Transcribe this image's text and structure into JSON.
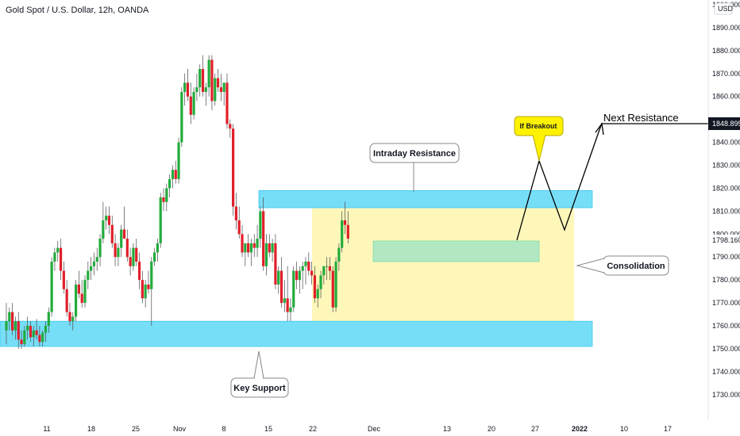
{
  "header": {
    "title": "Gold Spot / U.S. Dollar, 12h, OANDA",
    "currency": "USD"
  },
  "colors": {
    "up": "#089981",
    "down": "#f23645",
    "up_bright": "#22ab3c",
    "down_bright": "#e0202a",
    "zone": "#5fd8f7",
    "consolidation": "#fff6b3",
    "breakout_zone": "#a8e6c3",
    "callout_yellow": "#fff200"
  },
  "annotations": {
    "intraday_resistance": "Intraday Resistance",
    "key_support": "Key Support",
    "consolidation": "Consolidation",
    "if_breakout": "If Breakout",
    "next_resistance": "Next Resistance",
    "next_resistance_price": "1848.895",
    "current_price": "1798.160"
  },
  "chart_data": {
    "type": "candlestick",
    "title": "Gold Spot / U.S. Dollar, 12h, OANDA",
    "y_unit": "USD",
    "ylim": [
      1728,
      1900
    ],
    "y_ticks": [
      1730,
      1740,
      1750,
      1760,
      1770,
      1780,
      1790,
      1800,
      1810,
      1820,
      1830,
      1840,
      1850,
      1860,
      1870,
      1880,
      1890,
      1900
    ],
    "y_tick_labels": [
      "1730.000",
      "1740.000",
      "1750.000",
      "1760.000",
      "1770.000",
      "1780.000",
      "1790.000",
      "1800.000",
      "1810.000",
      "1820.000",
      "1830.000",
      "1840.000",
      "",
      "1860.000",
      "1870.000",
      "1880.000",
      "1890.000",
      "1900.000"
    ],
    "x_tick_labels": [
      "11",
      "18",
      "25",
      "Nov",
      "8",
      "15",
      "22",
      "Dec",
      "13",
      "20",
      "27",
      "2022",
      "10",
      "17"
    ],
    "x_tick_index": [
      0,
      14,
      28,
      42,
      56,
      70,
      84,
      98,
      126,
      140,
      154,
      168,
      182,
      196
    ],
    "x_index_offset": -3,
    "zones": [
      {
        "label": "Intraday Resistance",
        "from_index": 70,
        "to_index": 168,
        "low": 1811.5,
        "high": 1819
      },
      {
        "label": "Key Support",
        "from_index": -3,
        "to_index": 168,
        "low": 1751,
        "high": 1762
      },
      {
        "label": "Consolidation",
        "from_index": 84,
        "to_index": 165,
        "low": 1762,
        "high": 1811.5
      }
    ],
    "candles": [
      [
        1758,
        1770,
        1752,
        1762
      ],
      [
        1762,
        1768,
        1758,
        1766
      ],
      [
        1766,
        1770,
        1756,
        1758
      ],
      [
        1758,
        1764,
        1754,
        1762
      ],
      [
        1762,
        1766,
        1750,
        1754
      ],
      [
        1754,
        1758,
        1750,
        1752
      ],
      [
        1752,
        1760,
        1751,
        1758
      ],
      [
        1758,
        1764,
        1754,
        1760
      ],
      [
        1760,
        1762,
        1753,
        1755
      ],
      [
        1755,
        1760,
        1751,
        1758
      ],
      [
        1758,
        1763,
        1754,
        1756
      ],
      [
        1756,
        1760,
        1751,
        1753
      ],
      [
        1753,
        1758,
        1751,
        1757
      ],
      [
        1757,
        1762,
        1753,
        1760
      ],
      [
        1760,
        1768,
        1757,
        1766
      ],
      [
        1766,
        1790,
        1764,
        1788
      ],
      [
        1788,
        1794,
        1784,
        1792
      ],
      [
        1792,
        1797,
        1788,
        1794
      ],
      [
        1794,
        1798,
        1780,
        1784
      ],
      [
        1784,
        1788,
        1774,
        1776
      ],
      [
        1776,
        1780,
        1764,
        1766
      ],
      [
        1766,
        1770,
        1760,
        1762
      ],
      [
        1762,
        1766,
        1758,
        1764
      ],
      [
        1764,
        1780,
        1762,
        1778
      ],
      [
        1778,
        1784,
        1772,
        1774
      ],
      [
        1774,
        1780,
        1768,
        1770
      ],
      [
        1770,
        1782,
        1768,
        1780
      ],
      [
        1780,
        1788,
        1776,
        1784
      ],
      [
        1784,
        1790,
        1780,
        1786
      ],
      [
        1786,
        1792,
        1782,
        1788
      ],
      [
        1788,
        1794,
        1784,
        1790
      ],
      [
        1790,
        1800,
        1786,
        1798
      ],
      [
        1798,
        1814,
        1796,
        1806
      ],
      [
        1806,
        1812,
        1802,
        1808
      ],
      [
        1808,
        1812,
        1800,
        1804
      ],
      [
        1804,
        1808,
        1794,
        1796
      ],
      [
        1796,
        1800,
        1786,
        1790
      ],
      [
        1790,
        1796,
        1786,
        1794
      ],
      [
        1794,
        1804,
        1790,
        1802
      ],
      [
        1802,
        1812,
        1798,
        1798
      ],
      [
        1798,
        1802,
        1788,
        1790
      ],
      [
        1790,
        1794,
        1782,
        1786
      ],
      [
        1786,
        1796,
        1784,
        1794
      ],
      [
        1794,
        1798,
        1786,
        1788
      ],
      [
        1788,
        1792,
        1776,
        1780
      ],
      [
        1780,
        1784,
        1770,
        1772
      ],
      [
        1772,
        1780,
        1768,
        1778
      ],
      [
        1778,
        1784,
        1774,
        1776
      ],
      [
        1776,
        1790,
        1760,
        1788
      ],
      [
        1788,
        1794,
        1786,
        1792
      ],
      [
        1792,
        1798,
        1788,
        1796
      ],
      [
        1796,
        1818,
        1794,
        1816
      ],
      [
        1816,
        1820,
        1810,
        1814
      ],
      [
        1814,
        1822,
        1810,
        1820
      ],
      [
        1820,
        1826,
        1816,
        1824
      ],
      [
        1824,
        1830,
        1820,
        1828
      ],
      [
        1828,
        1832,
        1822,
        1824
      ],
      [
        1824,
        1842,
        1822,
        1840
      ],
      [
        1840,
        1864,
        1838,
        1862
      ],
      [
        1862,
        1870,
        1856,
        1866
      ],
      [
        1866,
        1872,
        1858,
        1860
      ],
      [
        1860,
        1866,
        1848,
        1852
      ],
      [
        1852,
        1864,
        1850,
        1862
      ],
      [
        1862,
        1870,
        1858,
        1864
      ],
      [
        1864,
        1874,
        1860,
        1872
      ],
      [
        1872,
        1878,
        1860,
        1862
      ],
      [
        1862,
        1866,
        1856,
        1864
      ],
      [
        1864,
        1878,
        1860,
        1876
      ],
      [
        1876,
        1878,
        1854,
        1858
      ],
      [
        1858,
        1870,
        1856,
        1868
      ],
      [
        1868,
        1872,
        1862,
        1864
      ],
      [
        1864,
        1870,
        1858,
        1862
      ],
      [
        1862,
        1866,
        1856,
        1866
      ],
      [
        1866,
        1870,
        1846,
        1848
      ],
      [
        1848,
        1850,
        1842,
        1846
      ],
      [
        1846,
        1848,
        1808,
        1812
      ],
      [
        1812,
        1818,
        1802,
        1806
      ],
      [
        1806,
        1812,
        1798,
        1800
      ],
      [
        1800,
        1804,
        1790,
        1792
      ],
      [
        1792,
        1796,
        1786,
        1796
      ],
      [
        1796,
        1800,
        1790,
        1792
      ],
      [
        1792,
        1798,
        1786,
        1796
      ],
      [
        1796,
        1800,
        1790,
        1794
      ],
      [
        1794,
        1804,
        1790,
        1798
      ],
      [
        1798,
        1812,
        1794,
        1810
      ],
      [
        1810,
        1816,
        1784,
        1786
      ],
      [
        1786,
        1800,
        1782,
        1796
      ],
      [
        1796,
        1800,
        1790,
        1792
      ],
      [
        1792,
        1798,
        1788,
        1796
      ],
      [
        1796,
        1800,
        1776,
        1778
      ],
      [
        1778,
        1786,
        1774,
        1784
      ],
      [
        1784,
        1790,
        1768,
        1770
      ],
      [
        1770,
        1780,
        1766,
        1772
      ],
      [
        1772,
        1786,
        1762,
        1766
      ],
      [
        1766,
        1772,
        1762,
        1768
      ],
      [
        1768,
        1786,
        1766,
        1784
      ],
      [
        1784,
        1788,
        1776,
        1780
      ],
      [
        1780,
        1786,
        1774,
        1784
      ],
      [
        1784,
        1788,
        1776,
        1786
      ],
      [
        1786,
        1790,
        1778,
        1788
      ],
      [
        1788,
        1792,
        1782,
        1784
      ],
      [
        1784,
        1788,
        1778,
        1782
      ],
      [
        1782,
        1786,
        1770,
        1772
      ],
      [
        1772,
        1778,
        1768,
        1776
      ],
      [
        1776,
        1784,
        1772,
        1782
      ],
      [
        1782,
        1786,
        1778,
        1786
      ],
      [
        1786,
        1790,
        1780,
        1786
      ],
      [
        1786,
        1790,
        1780,
        1784
      ],
      [
        1784,
        1786,
        1766,
        1768
      ],
      [
        1768,
        1790,
        1766,
        1788
      ],
      [
        1788,
        1796,
        1784,
        1794
      ],
      [
        1794,
        1810,
        1792,
        1806
      ],
      [
        1806,
        1814,
        1800,
        1804
      ],
      [
        1804,
        1810,
        1796,
        1798
      ]
    ]
  }
}
